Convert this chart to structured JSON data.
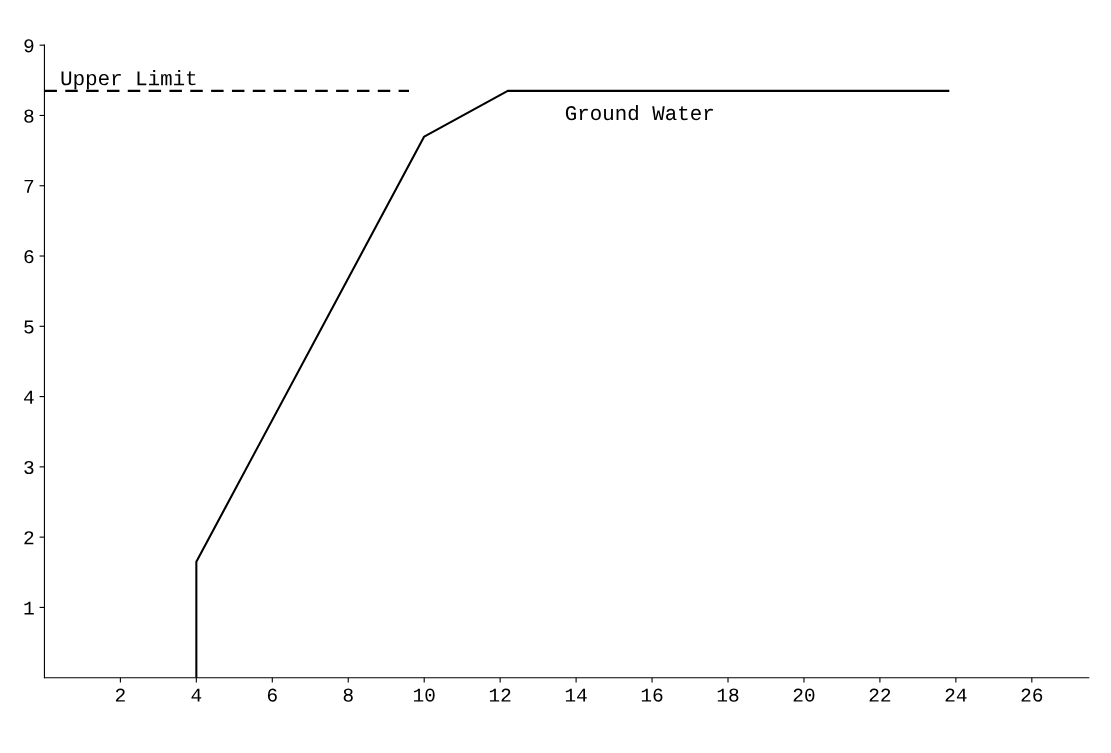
{
  "chart_data": {
    "type": "line",
    "xlim": [
      0,
      27.5
    ],
    "ylim": [
      0,
      9
    ],
    "xticks": [
      2,
      4,
      6,
      8,
      10,
      12,
      14,
      16,
      18,
      20,
      22,
      24,
      26
    ],
    "yticks": [
      1,
      2,
      3,
      4,
      5,
      6,
      7,
      8,
      9
    ],
    "grid": false,
    "legend": false,
    "series": [
      {
        "name": "Ground Water",
        "color": "#000000",
        "line_style": "solid",
        "x": [
          4,
          4,
          10,
          12.2,
          23.8
        ],
        "values": [
          0,
          1.65,
          7.7,
          8.35,
          8.35
        ]
      },
      {
        "color": "#000000",
        "line_style": "dashed",
        "x": [
          0,
          9.6
        ],
        "values": [
          8.35,
          8.35
        ]
      }
    ],
    "annotations": [
      "Upper Limit"
    ]
  }
}
